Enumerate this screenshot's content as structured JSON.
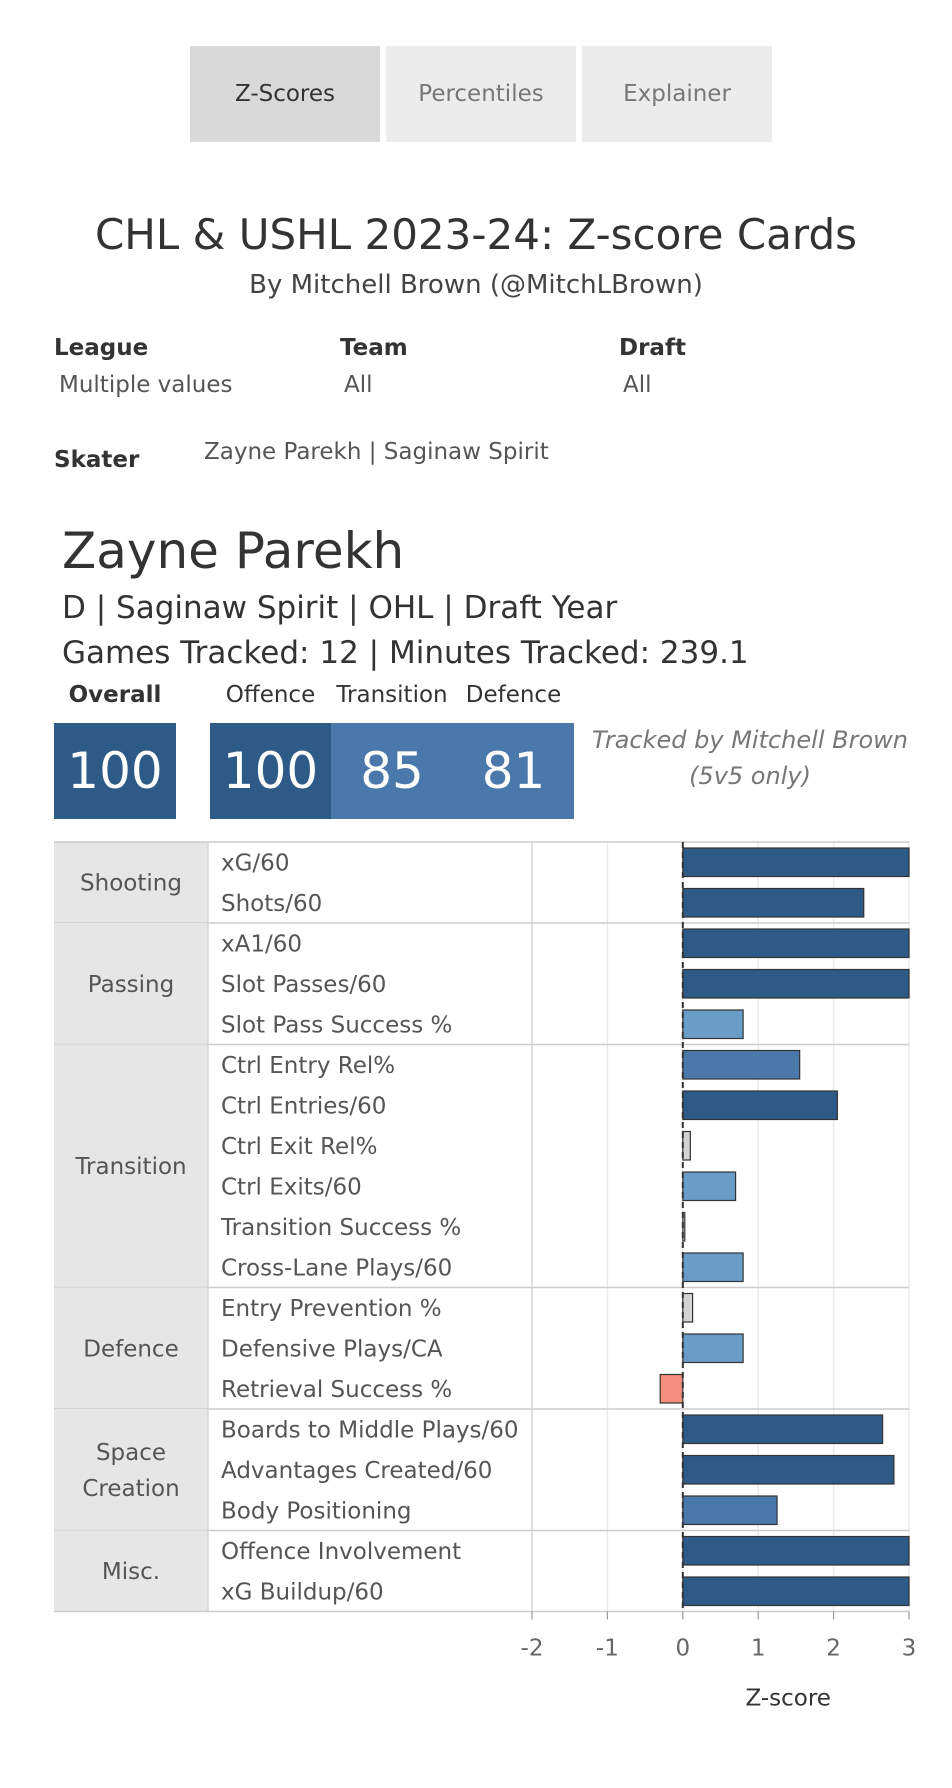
{
  "tabs": [
    {
      "label": "Z-Scores",
      "active": true
    },
    {
      "label": "Percentiles",
      "active": false
    },
    {
      "label": "Explainer",
      "active": false
    }
  ],
  "header": {
    "title": "CHL & USHL 2023-24: Z-score Cards",
    "subtitle": "By Mitchell Brown (@MitchLBrown)"
  },
  "filters": {
    "league": {
      "label": "League",
      "value": "Multiple values"
    },
    "team": {
      "label": "Team",
      "value": "All"
    },
    "draft": {
      "label": "Draft",
      "value": "All"
    },
    "skater": {
      "label": "Skater",
      "value": "Zayne Parekh | Saginaw Spirit"
    }
  },
  "player": {
    "name": "Zayne Parekh",
    "info": "D | Saginaw Spirit | OHL | Draft Year",
    "tracked": "Games Tracked: 12 | Minutes Tracked: 239.1"
  },
  "scores": {
    "overall": {
      "label": "Overall",
      "value": "100"
    },
    "offence": {
      "label": "Offence",
      "value": "100"
    },
    "transition": {
      "label": "Transition",
      "value": "85"
    },
    "defence": {
      "label": "Defence",
      "value": "81"
    }
  },
  "note": {
    "line1": "Tracked by Mitchell Brown",
    "line2": "(5v5 only)"
  },
  "colors": {
    "dark_blue": "#2e5a88",
    "mid_blue": "#4a78aa",
    "light_blue": "#6a9cc8",
    "grey": "#d3d3d3",
    "red": "#f28e7b",
    "category_bg": "#e6e6e6"
  },
  "chart_data": {
    "type": "bar",
    "orientation": "horizontal",
    "xlabel": "Z-score",
    "xlim": [
      -2,
      3
    ],
    "xticks": [
      "-2",
      "-1",
      "0",
      "1",
      "2",
      "3"
    ],
    "groups": [
      {
        "name": "Shooting",
        "metrics": [
          {
            "label": "xG/60",
            "value": 3.0,
            "color": "#2e5a88"
          },
          {
            "label": "Shots/60",
            "value": 2.4,
            "color": "#2e5a88"
          }
        ]
      },
      {
        "name": "Passing",
        "metrics": [
          {
            "label": "xA1/60",
            "value": 3.0,
            "color": "#2e5a88"
          },
          {
            "label": "Slot Passes/60",
            "value": 3.0,
            "color": "#2e5a88"
          },
          {
            "label": "Slot Pass Success %",
            "value": 0.8,
            "color": "#6a9cc8"
          }
        ]
      },
      {
        "name": "Transition",
        "metrics": [
          {
            "label": "Ctrl Entry Rel%",
            "value": 1.55,
            "color": "#4a78aa"
          },
          {
            "label": "Ctrl Entries/60",
            "value": 2.05,
            "color": "#2e5a88"
          },
          {
            "label": "Ctrl Exit Rel%",
            "value": 0.1,
            "color": "#d3d3d3"
          },
          {
            "label": "Ctrl Exits/60",
            "value": 0.7,
            "color": "#6a9cc8"
          },
          {
            "label": "Transition Success %",
            "value": 0.02,
            "color": "#d3d3d3"
          },
          {
            "label": "Cross-Lane Plays/60",
            "value": 0.8,
            "color": "#6a9cc8"
          }
        ]
      },
      {
        "name": "Defence",
        "metrics": [
          {
            "label": "Entry Prevention %",
            "value": 0.13,
            "color": "#d3d3d3"
          },
          {
            "label": "Defensive Plays/CA",
            "value": 0.8,
            "color": "#6a9cc8"
          },
          {
            "label": "Retrieval Success %",
            "value": -0.3,
            "color": "#f28e7b"
          }
        ]
      },
      {
        "name": "Space Creation",
        "metrics": [
          {
            "label": "Boards to Middle Plays/60",
            "value": 2.65,
            "color": "#2e5a88"
          },
          {
            "label": "Advantages Created/60",
            "value": 2.8,
            "color": "#2e5a88"
          },
          {
            "label": "Body Positioning",
            "value": 1.25,
            "color": "#4a78aa"
          }
        ]
      },
      {
        "name": "Misc.",
        "metrics": [
          {
            "label": "Offence Involvement",
            "value": 3.0,
            "color": "#2e5a88"
          },
          {
            "label": "xG Buildup/60",
            "value": 3.0,
            "color": "#2e5a88"
          }
        ]
      }
    ]
  }
}
